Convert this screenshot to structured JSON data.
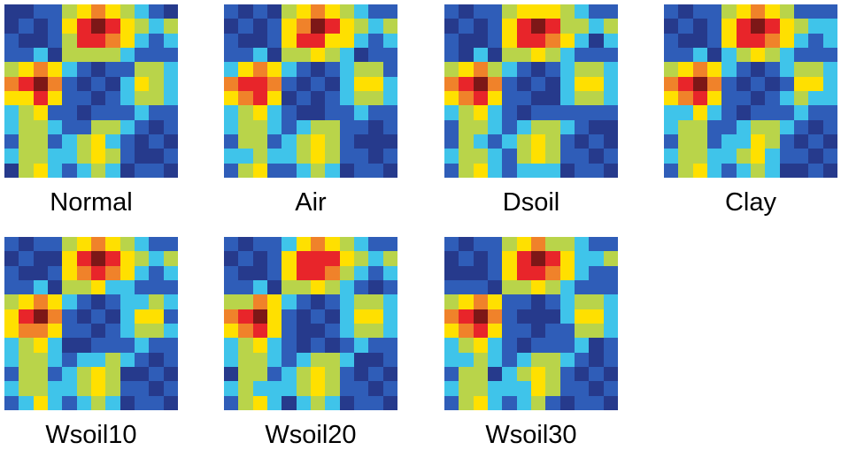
{
  "chart_data": {
    "type": "heatmap",
    "title": "",
    "layout": {
      "rows": 2,
      "columns": 4,
      "panel_count": 7
    },
    "colormap": [
      "#263a8c",
      "#2f5db8",
      "#3fc4ea",
      "#b9d44a",
      "#ffe000",
      "#f0822a",
      "#e8252a",
      "#7d1717"
    ],
    "colormap_name": "jet",
    "panels": [
      {
        "label": "Normal"
      },
      {
        "label": "Air"
      },
      {
        "label": "Dsoil"
      },
      {
        "label": "Clay"
      },
      {
        "label": "Wsoil10"
      },
      {
        "label": "Wsoil20"
      },
      {
        "label": "Wsoil30"
      }
    ],
    "block_structure": "3x3 blocks; high-correlation (red) peaks in the top-middle and middle-left blocks; low (navy/blue) in diagonal blocks; moderate (yellow-green/cyan) in middle-right and bottom-middle blocks",
    "matrix_approx": [
      [
        1,
        0,
        1,
        1,
        3,
        4,
        5,
        4,
        3,
        2,
        1,
        1
      ],
      [
        0,
        1,
        0,
        1,
        4,
        6,
        7,
        6,
        4,
        3,
        2,
        3
      ],
      [
        1,
        0,
        0,
        1,
        4,
        6,
        6,
        5,
        4,
        2,
        1,
        2
      ],
      [
        1,
        1,
        2,
        0,
        3,
        3,
        4,
        3,
        2,
        1,
        1,
        1
      ],
      [
        3,
        4,
        5,
        4,
        2,
        1,
        0,
        1,
        2,
        3,
        3,
        2
      ],
      [
        5,
        6,
        7,
        5,
        1,
        0,
        1,
        0,
        2,
        4,
        4,
        2
      ],
      [
        4,
        5,
        6,
        4,
        1,
        1,
        0,
        1,
        2,
        3,
        3,
        2
      ],
      [
        2,
        3,
        4,
        2,
        1,
        0,
        1,
        1,
        1,
        2,
        1,
        1
      ],
      [
        2,
        3,
        3,
        2,
        1,
        2,
        3,
        3,
        2,
        1,
        0,
        1
      ],
      [
        1,
        3,
        3,
        1,
        2,
        3,
        4,
        3,
        1,
        0,
        1,
        0
      ],
      [
        2,
        3,
        3,
        2,
        2,
        3,
        4,
        3,
        1,
        1,
        0,
        1
      ],
      [
        1,
        3,
        4,
        2,
        1,
        2,
        3,
        2,
        0,
        1,
        1,
        0
      ]
    ]
  }
}
